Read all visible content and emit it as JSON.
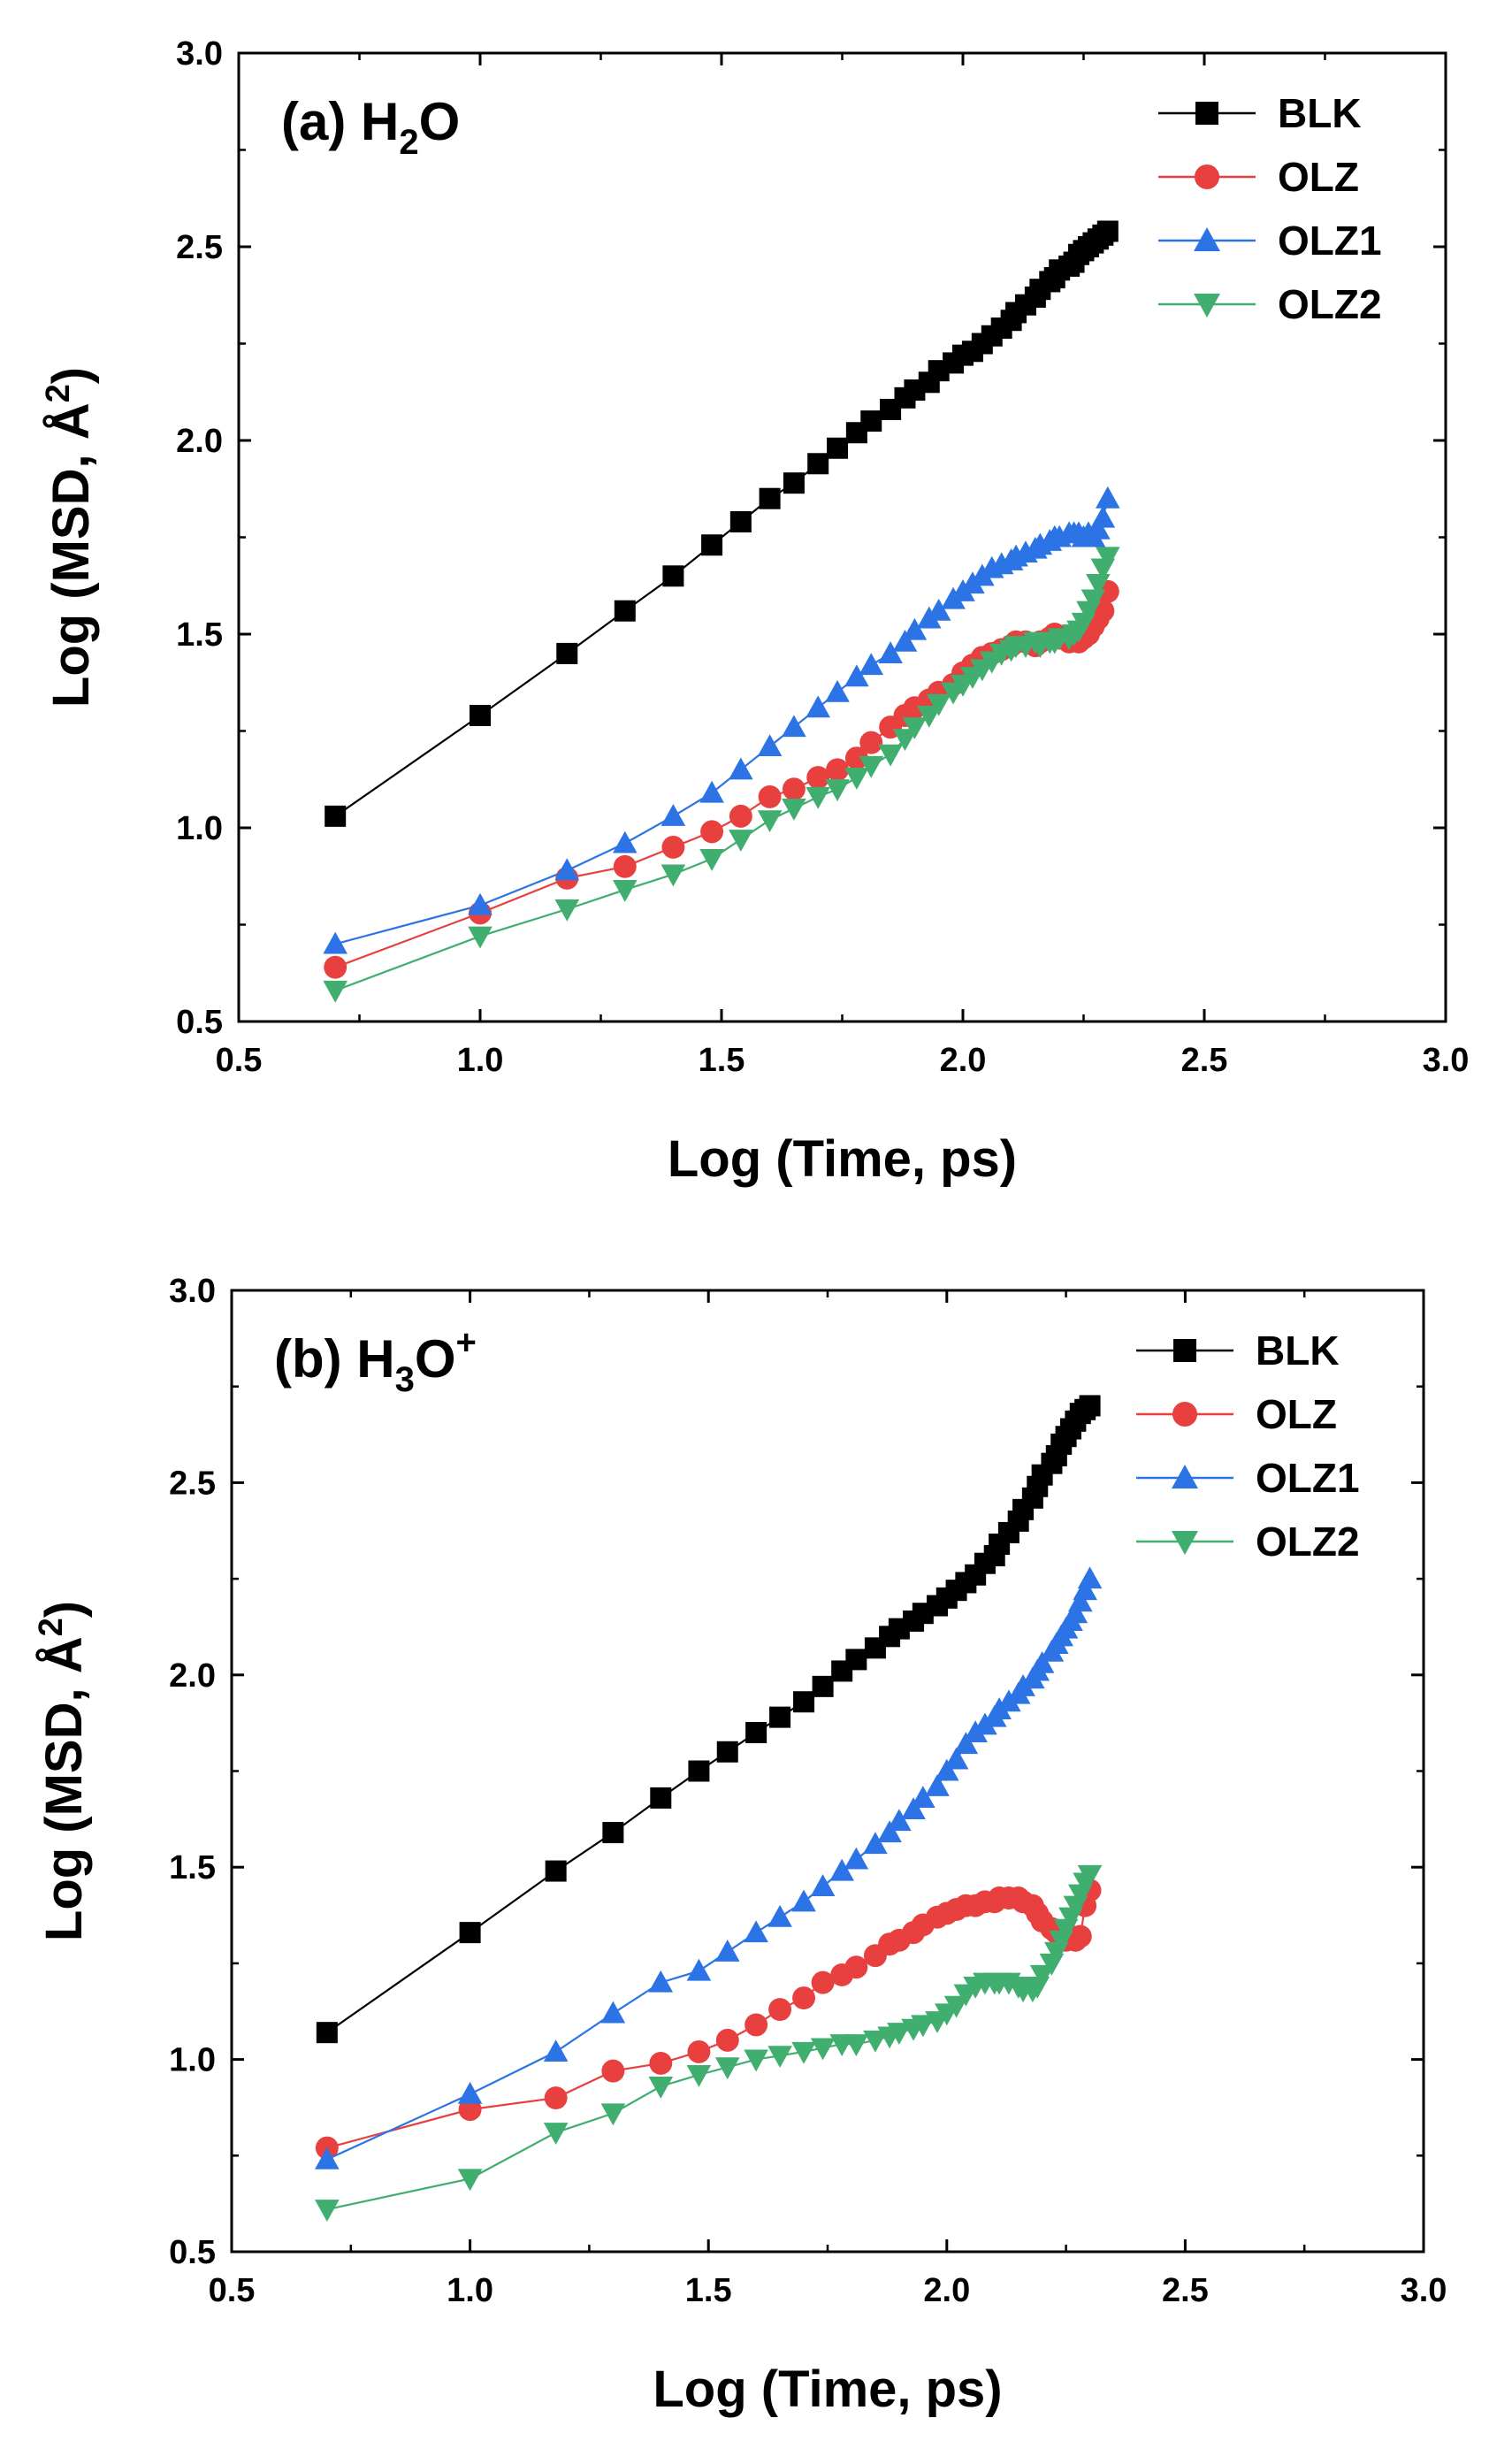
{
  "chart_data": [
    {
      "type": "line",
      "panel": "(a)",
      "title": "(a) H2O",
      "title_parts": {
        "prefix": "(a) H",
        "sub": "2",
        "suffix": "O",
        "sup": ""
      },
      "xlabel": "Log (Time, ps)",
      "ylabel": "Log (MSD, Å2)",
      "ylabel_parts": {
        "main": "Log (MSD, Å",
        "sup": "2",
        "end": ")"
      },
      "xlim": [
        0.5,
        3.0
      ],
      "ylim": [
        0.5,
        3.0
      ],
      "xticks": [
        "0.5",
        "1.0",
        "1.5",
        "2.0",
        "2.5",
        "3.0"
      ],
      "yticks": [
        "0.5",
        "1.0",
        "1.5",
        "2.0",
        "2.5",
        "3.0"
      ],
      "legend_position": "top-right",
      "series": [
        {
          "name": "BLK",
          "color": "#000000",
          "marker": "square",
          "x": [
            0.7,
            1.0,
            1.18,
            1.3,
            1.4,
            1.48,
            1.54,
            1.6,
            1.65,
            1.7,
            1.74,
            1.78,
            1.81,
            1.85,
            1.88,
            1.9,
            1.93,
            1.95,
            1.98,
            2.0,
            2.02,
            2.04,
            2.06,
            2.08,
            2.1,
            2.11,
            2.13,
            2.15,
            2.16,
            2.18,
            2.19,
            2.2,
            2.22,
            2.23,
            2.24,
            2.25,
            2.26,
            2.27,
            2.28,
            2.29,
            2.3
          ],
          "y": [
            1.03,
            1.29,
            1.45,
            1.56,
            1.65,
            1.73,
            1.79,
            1.85,
            1.89,
            1.94,
            1.98,
            2.02,
            2.05,
            2.08,
            2.11,
            2.13,
            2.15,
            2.18,
            2.2,
            2.22,
            2.23,
            2.25,
            2.27,
            2.29,
            2.31,
            2.33,
            2.35,
            2.37,
            2.39,
            2.41,
            2.42,
            2.44,
            2.45,
            2.46,
            2.48,
            2.49,
            2.5,
            2.51,
            2.52,
            2.53,
            2.54
          ]
        },
        {
          "name": "OLZ",
          "color": "#e8403f",
          "marker": "circle",
          "x": [
            0.7,
            1.0,
            1.18,
            1.3,
            1.4,
            1.48,
            1.54,
            1.6,
            1.65,
            1.7,
            1.74,
            1.78,
            1.81,
            1.85,
            1.88,
            1.9,
            1.93,
            1.95,
            1.98,
            2.0,
            2.02,
            2.04,
            2.06,
            2.08,
            2.1,
            2.11,
            2.13,
            2.15,
            2.16,
            2.18,
            2.19,
            2.2,
            2.22,
            2.23,
            2.24,
            2.25,
            2.26,
            2.27,
            2.28,
            2.29,
            2.3
          ],
          "y": [
            0.64,
            0.78,
            0.87,
            0.9,
            0.95,
            0.99,
            1.03,
            1.08,
            1.1,
            1.13,
            1.15,
            1.18,
            1.22,
            1.26,
            1.29,
            1.31,
            1.33,
            1.35,
            1.37,
            1.4,
            1.42,
            1.44,
            1.45,
            1.46,
            1.47,
            1.48,
            1.48,
            1.47,
            1.48,
            1.49,
            1.5,
            1.49,
            1.48,
            1.49,
            1.48,
            1.49,
            1.5,
            1.52,
            1.54,
            1.56,
            1.61
          ]
        },
        {
          "name": "OLZ1",
          "color": "#2c74e6",
          "marker": "triangle-up",
          "x": [
            0.7,
            1.0,
            1.18,
            1.3,
            1.4,
            1.48,
            1.54,
            1.6,
            1.65,
            1.7,
            1.74,
            1.78,
            1.81,
            1.85,
            1.88,
            1.9,
            1.93,
            1.95,
            1.98,
            2.0,
            2.02,
            2.04,
            2.06,
            2.08,
            2.1,
            2.11,
            2.13,
            2.15,
            2.16,
            2.18,
            2.19,
            2.2,
            2.22,
            2.23,
            2.24,
            2.25,
            2.26,
            2.27,
            2.28,
            2.29,
            2.3
          ],
          "y": [
            0.7,
            0.8,
            0.89,
            0.96,
            1.03,
            1.09,
            1.15,
            1.21,
            1.26,
            1.31,
            1.35,
            1.39,
            1.42,
            1.45,
            1.48,
            1.51,
            1.54,
            1.56,
            1.59,
            1.61,
            1.63,
            1.65,
            1.67,
            1.68,
            1.69,
            1.7,
            1.71,
            1.72,
            1.73,
            1.74,
            1.75,
            1.75,
            1.76,
            1.76,
            1.76,
            1.75,
            1.76,
            1.75,
            1.77,
            1.8,
            1.85
          ]
        },
        {
          "name": "OLZ2",
          "color": "#3fae6e",
          "marker": "triangle-down",
          "x": [
            0.7,
            1.0,
            1.18,
            1.3,
            1.4,
            1.48,
            1.54,
            1.6,
            1.65,
            1.7,
            1.74,
            1.78,
            1.81,
            1.85,
            1.88,
            1.9,
            1.93,
            1.95,
            1.98,
            2.0,
            2.02,
            2.04,
            2.06,
            2.08,
            2.1,
            2.11,
            2.13,
            2.15,
            2.16,
            2.18,
            2.19,
            2.2,
            2.22,
            2.23,
            2.24,
            2.25,
            2.26,
            2.27,
            2.28,
            2.29,
            2.3
          ],
          "y": [
            0.58,
            0.72,
            0.79,
            0.84,
            0.88,
            0.92,
            0.97,
            1.02,
            1.05,
            1.08,
            1.1,
            1.13,
            1.16,
            1.19,
            1.23,
            1.26,
            1.29,
            1.32,
            1.35,
            1.37,
            1.39,
            1.41,
            1.43,
            1.45,
            1.46,
            1.47,
            1.47,
            1.48,
            1.47,
            1.48,
            1.48,
            1.49,
            1.49,
            1.5,
            1.51,
            1.53,
            1.56,
            1.59,
            1.63,
            1.67,
            1.7
          ]
        }
      ]
    },
    {
      "type": "line",
      "panel": "(b)",
      "title": "(b) H3O+",
      "title_parts": {
        "prefix": "(b) H",
        "sub": "3",
        "suffix": "O",
        "sup": "+"
      },
      "xlabel": "Log (Time, ps)",
      "ylabel": "Log (MSD, Å2)",
      "ylabel_parts": {
        "main": "Log (MSD, Å",
        "sup": "2",
        "end": ")"
      },
      "xlim": [
        0.5,
        3.0
      ],
      "ylim": [
        0.5,
        3.0
      ],
      "xticks": [
        "0.5",
        "1.0",
        "1.5",
        "2.0",
        "2.5",
        "3.0"
      ],
      "yticks": [
        "0.5",
        "1.0",
        "1.5",
        "2.0",
        "2.5",
        "3.0"
      ],
      "legend_position": "top-right",
      "series": [
        {
          "name": "BLK",
          "color": "#000000",
          "marker": "square",
          "x": [
            0.7,
            1.0,
            1.18,
            1.3,
            1.4,
            1.48,
            1.54,
            1.6,
            1.65,
            1.7,
            1.74,
            1.78,
            1.81,
            1.85,
            1.88,
            1.9,
            1.93,
            1.95,
            1.98,
            2.0,
            2.02,
            2.04,
            2.06,
            2.08,
            2.1,
            2.11,
            2.13,
            2.15,
            2.16,
            2.18,
            2.19,
            2.2,
            2.22,
            2.23,
            2.24,
            2.25,
            2.26,
            2.27,
            2.28,
            2.29,
            2.3
          ],
          "y": [
            1.07,
            1.33,
            1.49,
            1.59,
            1.68,
            1.75,
            1.8,
            1.85,
            1.89,
            1.93,
            1.97,
            2.01,
            2.04,
            2.07,
            2.1,
            2.12,
            2.14,
            2.16,
            2.18,
            2.2,
            2.22,
            2.24,
            2.26,
            2.29,
            2.31,
            2.34,
            2.37,
            2.4,
            2.43,
            2.46,
            2.49,
            2.52,
            2.55,
            2.57,
            2.6,
            2.62,
            2.64,
            2.66,
            2.68,
            2.69,
            2.7
          ]
        },
        {
          "name": "OLZ",
          "color": "#e8403f",
          "marker": "circle",
          "x": [
            0.7,
            1.0,
            1.18,
            1.3,
            1.4,
            1.48,
            1.54,
            1.6,
            1.65,
            1.7,
            1.74,
            1.78,
            1.81,
            1.85,
            1.88,
            1.9,
            1.93,
            1.95,
            1.98,
            2.0,
            2.02,
            2.04,
            2.06,
            2.08,
            2.1,
            2.11,
            2.13,
            2.15,
            2.16,
            2.18,
            2.19,
            2.2,
            2.22,
            2.23,
            2.24,
            2.25,
            2.26,
            2.27,
            2.28,
            2.29,
            2.3
          ],
          "y": [
            0.77,
            0.87,
            0.9,
            0.97,
            0.99,
            1.02,
            1.05,
            1.09,
            1.13,
            1.16,
            1.2,
            1.22,
            1.24,
            1.27,
            1.3,
            1.31,
            1.33,
            1.35,
            1.37,
            1.38,
            1.39,
            1.4,
            1.4,
            1.41,
            1.41,
            1.42,
            1.42,
            1.42,
            1.41,
            1.4,
            1.38,
            1.36,
            1.34,
            1.33,
            1.32,
            1.31,
            1.32,
            1.31,
            1.32,
            1.4,
            1.44
          ]
        },
        {
          "name": "OLZ1",
          "color": "#2c74e6",
          "marker": "triangle-up",
          "x": [
            0.7,
            1.0,
            1.18,
            1.3,
            1.4,
            1.48,
            1.54,
            1.6,
            1.65,
            1.7,
            1.74,
            1.78,
            1.81,
            1.85,
            1.88,
            1.9,
            1.93,
            1.95,
            1.98,
            2.0,
            2.02,
            2.04,
            2.06,
            2.08,
            2.1,
            2.11,
            2.13,
            2.15,
            2.16,
            2.18,
            2.19,
            2.2,
            2.22,
            2.23,
            2.24,
            2.25,
            2.26,
            2.27,
            2.28,
            2.29,
            2.3
          ],
          "y": [
            0.74,
            0.91,
            1.02,
            1.12,
            1.2,
            1.23,
            1.28,
            1.33,
            1.37,
            1.41,
            1.45,
            1.49,
            1.52,
            1.56,
            1.59,
            1.62,
            1.65,
            1.68,
            1.71,
            1.75,
            1.78,
            1.82,
            1.85,
            1.87,
            1.89,
            1.91,
            1.93,
            1.95,
            1.97,
            1.99,
            2.01,
            2.03,
            2.06,
            2.08,
            2.1,
            2.12,
            2.14,
            2.16,
            2.19,
            2.22,
            2.25
          ]
        },
        {
          "name": "OLZ2",
          "color": "#3fae6e",
          "marker": "triangle-down",
          "x": [
            0.7,
            1.0,
            1.18,
            1.3,
            1.4,
            1.48,
            1.54,
            1.6,
            1.65,
            1.7,
            1.74,
            1.78,
            1.81,
            1.85,
            1.88,
            1.9,
            1.93,
            1.95,
            1.98,
            2.0,
            2.02,
            2.04,
            2.06,
            2.08,
            2.1,
            2.11,
            2.13,
            2.15,
            2.16,
            2.18,
            2.19,
            2.2,
            2.22,
            2.23,
            2.24,
            2.25,
            2.26,
            2.27,
            2.28,
            2.29,
            2.3
          ],
          "y": [
            0.61,
            0.69,
            0.81,
            0.86,
            0.93,
            0.96,
            0.98,
            1.0,
            1.01,
            1.02,
            1.03,
            1.04,
            1.04,
            1.05,
            1.06,
            1.07,
            1.08,
            1.09,
            1.1,
            1.12,
            1.14,
            1.17,
            1.19,
            1.2,
            1.2,
            1.2,
            1.2,
            1.19,
            1.18,
            1.18,
            1.19,
            1.22,
            1.25,
            1.28,
            1.31,
            1.34,
            1.37,
            1.4,
            1.43,
            1.46,
            1.48
          ]
        }
      ]
    }
  ]
}
